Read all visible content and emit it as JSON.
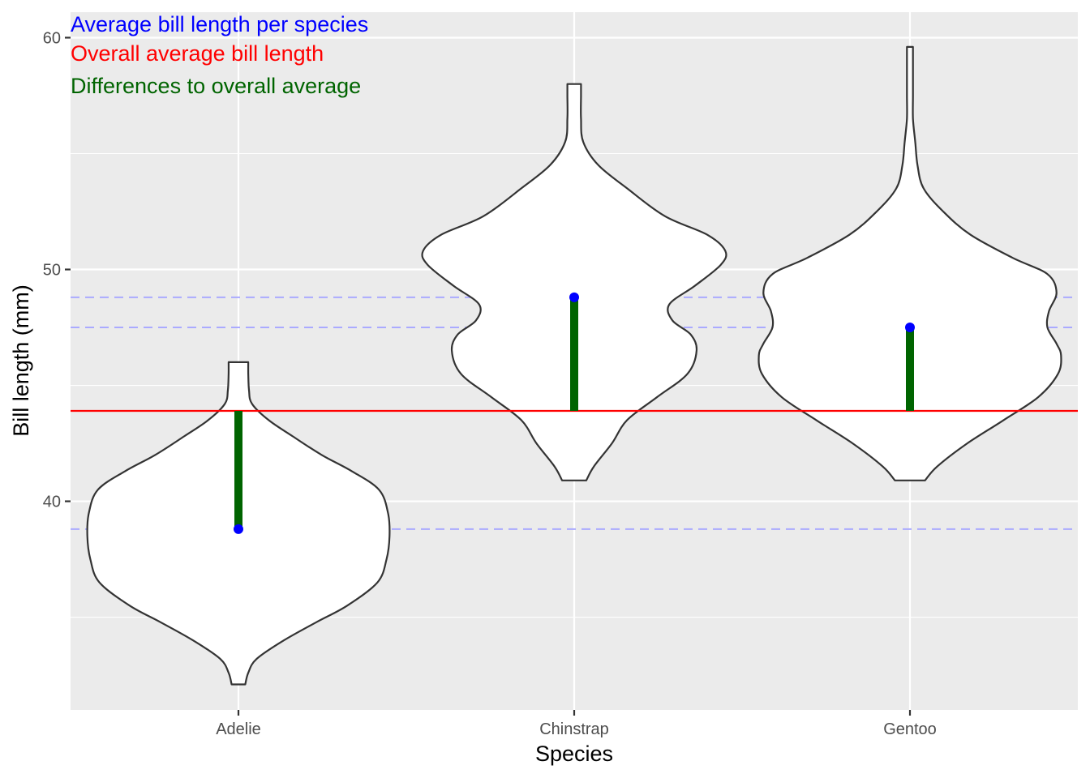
{
  "chart_data": {
    "type": "violin",
    "xlabel": "Species",
    "ylabel": "Bill length (mm)",
    "categories": [
      "Adelie",
      "Chinstrap",
      "Gentoo"
    ],
    "ylim": [
      31.0,
      61.1
    ],
    "yticks": [
      40,
      50,
      60
    ],
    "yticks_minor": [
      35,
      45,
      55
    ],
    "grid": true,
    "overall_mean": 43.9,
    "species_means": [
      38.8,
      48.8,
      47.5
    ],
    "distributions": [
      {
        "category": "Adelie",
        "min": 32.1,
        "max": 46.0,
        "profile": [
          [
            32.1,
            0.045
          ],
          [
            32.6,
            0.065
          ],
          [
            33.2,
            0.12
          ],
          [
            34.0,
            0.3
          ],
          [
            34.8,
            0.52
          ],
          [
            35.5,
            0.72
          ],
          [
            36.5,
            0.92
          ],
          [
            37.5,
            0.98
          ],
          [
            38.5,
            1.0
          ],
          [
            39.5,
            0.99
          ],
          [
            40.5,
            0.93
          ],
          [
            41.3,
            0.75
          ],
          [
            42.0,
            0.55
          ],
          [
            42.8,
            0.36
          ],
          [
            43.5,
            0.2
          ],
          [
            44.2,
            0.09
          ],
          [
            44.8,
            0.07
          ],
          [
            45.5,
            0.065
          ],
          [
            46.0,
            0.065
          ]
        ]
      },
      {
        "category": "Chinstrap",
        "min": 40.9,
        "max": 58.0,
        "profile": [
          [
            40.9,
            0.08
          ],
          [
            41.5,
            0.13
          ],
          [
            42.5,
            0.25
          ],
          [
            43.5,
            0.35
          ],
          [
            44.5,
            0.55
          ],
          [
            45.5,
            0.75
          ],
          [
            46.5,
            0.81
          ],
          [
            47.2,
            0.77
          ],
          [
            47.8,
            0.65
          ],
          [
            48.5,
            0.63
          ],
          [
            49.3,
            0.8
          ],
          [
            50.2,
            0.97
          ],
          [
            50.8,
            1.0
          ],
          [
            51.5,
            0.88
          ],
          [
            52.3,
            0.6
          ],
          [
            53.5,
            0.35
          ],
          [
            54.5,
            0.16
          ],
          [
            55.5,
            0.06
          ],
          [
            56.5,
            0.045
          ],
          [
            57.5,
            0.045
          ],
          [
            58.0,
            0.045
          ]
        ]
      },
      {
        "category": "Gentoo",
        "min": 40.9,
        "max": 59.6,
        "profile": [
          [
            40.9,
            0.1
          ],
          [
            41.5,
            0.18
          ],
          [
            42.5,
            0.38
          ],
          [
            43.5,
            0.62
          ],
          [
            44.5,
            0.85
          ],
          [
            45.5,
            0.98
          ],
          [
            46.3,
            1.0
          ],
          [
            46.8,
            0.97
          ],
          [
            47.5,
            0.91
          ],
          [
            48.2,
            0.92
          ],
          [
            49.0,
            0.97
          ],
          [
            49.8,
            0.91
          ],
          [
            50.5,
            0.68
          ],
          [
            51.5,
            0.4
          ],
          [
            52.5,
            0.22
          ],
          [
            53.5,
            0.09
          ],
          [
            54.5,
            0.05
          ],
          [
            55.5,
            0.035
          ],
          [
            56.5,
            0.02
          ],
          [
            57.5,
            0.02
          ],
          [
            58.5,
            0.02
          ],
          [
            59.6,
            0.02
          ]
        ]
      }
    ],
    "legend_texts": [
      {
        "text": "Average bill length per species",
        "color": "#0000ff"
      },
      {
        "text": "Overall average bill length",
        "color": "#ff0000"
      },
      {
        "text": "Differences to overall average",
        "color": "#006400"
      }
    ],
    "colors": {
      "panel_background": "#ebebeb",
      "grid": "#ffffff",
      "violin_fill": "#ffffff",
      "violin_outline": "#333333",
      "mean_point": "#0000ff",
      "mean_dashed_line": "#aaaaff",
      "overall_line": "#ff0000",
      "difference_segment": "#006400"
    }
  }
}
